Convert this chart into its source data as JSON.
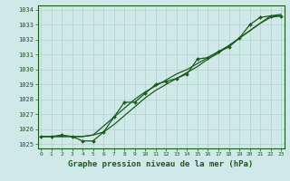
{
  "bg_color": "#cfe8e8",
  "grid_color": "#b0d0d0",
  "line_color": "#1a5c1a",
  "xlabel": "Graphe pression niveau de la mer (hPa)",
  "ylim": [
    1024.7,
    1034.3
  ],
  "xlim": [
    -0.3,
    23.3
  ],
  "yticks": [
    1025,
    1026,
    1027,
    1028,
    1029,
    1030,
    1031,
    1032,
    1033,
    1034
  ],
  "xticks": [
    0,
    1,
    2,
    3,
    4,
    5,
    6,
    7,
    8,
    9,
    10,
    11,
    12,
    13,
    14,
    15,
    16,
    17,
    18,
    19,
    20,
    21,
    22,
    23
  ],
  "series_plain": [
    [
      1025.5,
      1025.5,
      1025.5,
      1025.5,
      1025.5,
      1025.6,
      1026.2,
      1026.8,
      1027.4,
      1028.0,
      1028.5,
      1028.9,
      1029.3,
      1029.7,
      1030.0,
      1030.4,
      1030.8,
      1031.2,
      1031.6,
      1032.1,
      1032.6,
      1033.1,
      1033.5,
      1033.6
    ],
    [
      1025.5,
      1025.5,
      1025.5,
      1025.5,
      1025.5,
      1025.6,
      1025.8,
      1026.3,
      1026.9,
      1027.5,
      1028.1,
      1028.6,
      1029.0,
      1029.4,
      1029.8,
      1030.2,
      1030.7,
      1031.1,
      1031.6,
      1032.1,
      1032.6,
      1033.1,
      1033.6,
      1033.7
    ]
  ],
  "series_marker": [
    1025.5,
    1025.5,
    1025.6,
    1025.5,
    1025.2,
    1025.2,
    1025.8,
    1026.8,
    1027.8,
    1027.8,
    1028.4,
    1029.0,
    1029.2,
    1029.4,
    1029.7,
    1030.7,
    1030.8,
    1031.2,
    1031.5,
    1032.1,
    1033.0,
    1033.5,
    1033.6,
    1033.6
  ]
}
